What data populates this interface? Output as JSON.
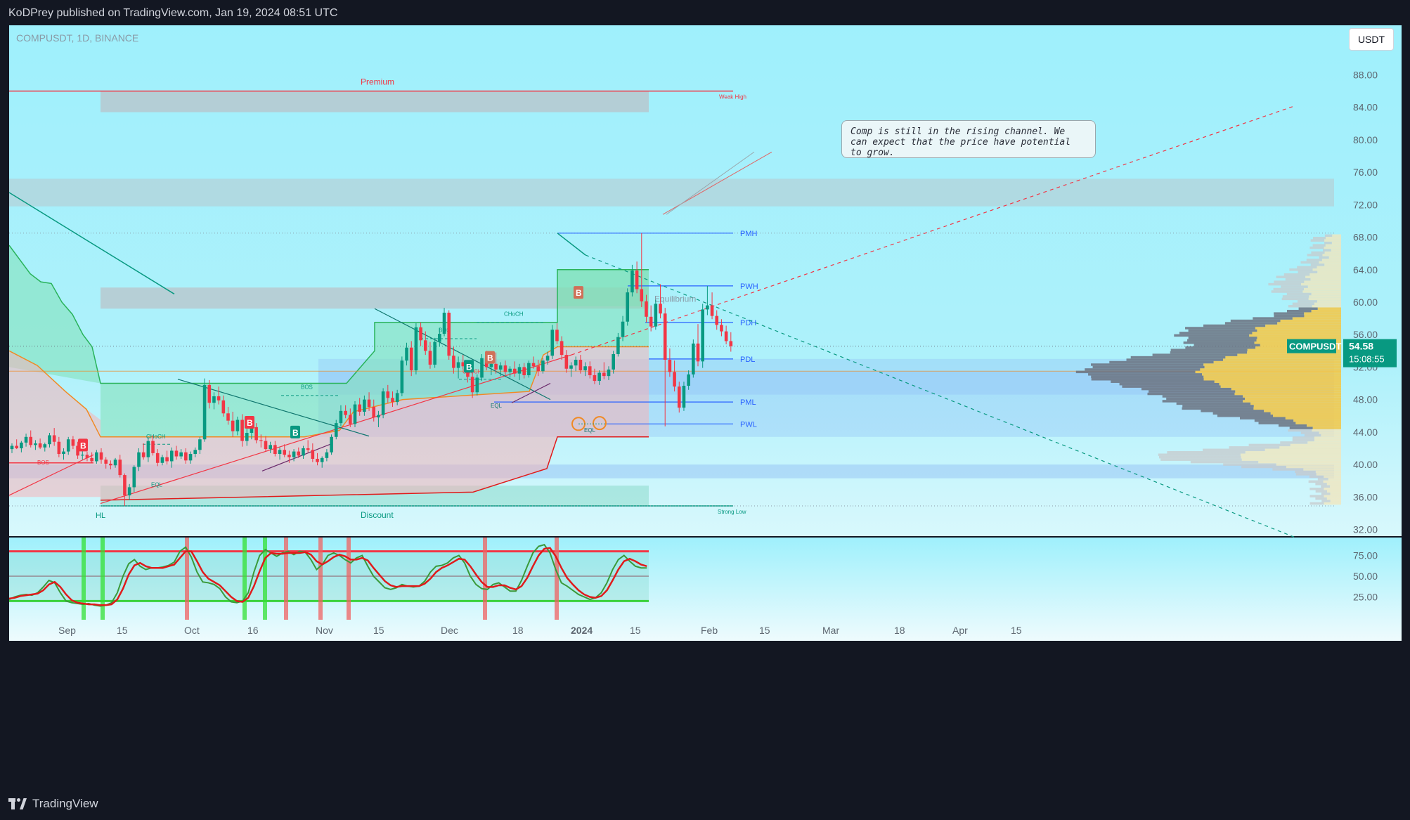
{
  "header": {
    "text": "KoDPrey published on TradingView.com, Jan 19, 2024 08:51 UTC"
  },
  "footer": {
    "brand": "TradingView"
  },
  "chart": {
    "symbol_label": "COMPUSDT, 1D, BINANCE",
    "currency": "USDT",
    "price_badge": {
      "symbol": "COMPUSDT",
      "price": "54.58",
      "countdown": "15:08:55"
    },
    "callout": "Comp is still in the rising channel. We can expect that the price have potential to grow."
  },
  "colors": {
    "bg_top": "#9ff0fc",
    "bg_bottom": "#f2fcfd",
    "bull": "#089981",
    "bear": "#f23645",
    "green_zone": "#7fe0b6",
    "red_zone": "#f6b3b8",
    "blue_zone": "#8fbdf5",
    "gray_zone": "#b9c3ca",
    "accent_blue": "#2962ff",
    "profile_yellow": "#f2c94c",
    "profile_gray": "#6b7280"
  },
  "chart_data": {
    "type": "candlestick",
    "price_axis": {
      "ticks": [
        "88.00",
        "84.00",
        "80.00",
        "76.00",
        "72.00",
        "68.00",
        "64.00",
        "60.00",
        "56.00",
        "52.00",
        "48.00",
        "44.00",
        "40.00",
        "36.00",
        "32.00"
      ],
      "range": [
        31,
        90
      ]
    },
    "time_axis": {
      "ticks": [
        "Sep",
        "15",
        "Oct",
        "16",
        "Nov",
        "15",
        "Dec",
        "18",
        "2024",
        "15",
        "Feb",
        "15",
        "Mar",
        "18",
        "Apr",
        "15"
      ]
    },
    "levels": [
      {
        "label": "PMH",
        "price": 68.5
      },
      {
        "label": "PWH",
        "price": 62.0
      },
      {
        "label": "PDH",
        "price": 57.5
      },
      {
        "label": "PDL",
        "price": 53.0
      },
      {
        "label": "PML",
        "price": 47.7
      },
      {
        "label": "PWL",
        "price": 45.0
      }
    ],
    "zone_labels": {
      "premium": "Premium",
      "discount": "Discount",
      "equilibrium": "Equilibrium",
      "weak_high": "Weak High",
      "strong_low": "Strong Low",
      "hl": "HL"
    },
    "structure_labels": [
      "BOS",
      "CHoCH",
      "BOS",
      "BOS",
      "CHoCH",
      "CHoCH",
      "EQL",
      "EQL",
      "EQL"
    ],
    "signals": [
      {
        "type": "B",
        "side": "sell",
        "x": 0.073
      },
      {
        "type": "B",
        "side": "sell",
        "x": 0.232
      },
      {
        "type": "B",
        "side": "buy",
        "x": 0.282
      },
      {
        "type": "B",
        "side": "buy",
        "x": 0.441
      },
      {
        "type": "B",
        "side": "sell",
        "x": 0.461
      },
      {
        "type": "B",
        "side": "sell",
        "x": 0.552
      }
    ],
    "candles": [
      [
        41.9,
        42.6,
        41.4,
        42.3
      ],
      [
        42.3,
        43.1,
        41.9,
        42.0
      ],
      [
        42.0,
        42.9,
        41.5,
        42.7
      ],
      [
        42.7,
        43.8,
        42.2,
        43.4
      ],
      [
        43.4,
        44.2,
        42.1,
        42.4
      ],
      [
        42.4,
        43.0,
        41.8,
        42.6
      ],
      [
        42.6,
        43.2,
        41.9,
        42.1
      ],
      [
        42.1,
        42.7,
        41.6,
        42.5
      ],
      [
        42.5,
        43.9,
        42.1,
        43.6
      ],
      [
        43.6,
        44.5,
        42.3,
        42.8
      ],
      [
        42.8,
        43.4,
        40.9,
        41.3
      ],
      [
        41.3,
        42.0,
        40.6,
        41.6
      ],
      [
        41.6,
        43.4,
        41.2,
        43.1
      ],
      [
        43.1,
        43.5,
        41.9,
        42.3
      ],
      [
        42.3,
        42.8,
        40.7,
        41.1
      ],
      [
        41.1,
        41.8,
        40.6,
        41.2
      ],
      [
        41.2,
        41.6,
        40.4,
        40.8
      ],
      [
        40.8,
        41.5,
        40.2,
        40.4
      ],
      [
        40.4,
        41.8,
        40.1,
        41.5
      ],
      [
        41.5,
        42.0,
        40.1,
        40.6
      ],
      [
        40.6,
        40.9,
        39.5,
        40.1
      ],
      [
        40.1,
        40.5,
        39.4,
        39.9
      ],
      [
        39.9,
        40.8,
        39.6,
        40.6
      ],
      [
        40.6,
        41.2,
        38.4,
        38.7
      ],
      [
        38.7,
        38.9,
        34.9,
        36.2
      ],
      [
        36.2,
        37.6,
        35.6,
        37.2
      ],
      [
        37.2,
        39.9,
        36.6,
        39.7
      ],
      [
        39.7,
        42.0,
        39.2,
        41.5
      ],
      [
        41.5,
        42.6,
        40.6,
        40.9
      ],
      [
        40.9,
        43.4,
        40.3,
        42.9
      ],
      [
        42.9,
        43.6,
        41.1,
        41.4
      ],
      [
        41.4,
        41.9,
        39.8,
        40.2
      ],
      [
        40.2,
        41.2,
        39.9,
        40.9
      ],
      [
        40.9,
        41.7,
        40.0,
        40.4
      ],
      [
        40.4,
        42.1,
        39.6,
        41.7
      ],
      [
        41.7,
        42.3,
        40.6,
        41.0
      ],
      [
        41.0,
        41.9,
        40.7,
        41.5
      ],
      [
        41.5,
        42.0,
        40.1,
        40.5
      ],
      [
        40.5,
        41.6,
        40.1,
        41.3
      ],
      [
        41.3,
        42.1,
        40.9,
        41.8
      ],
      [
        41.8,
        43.4,
        41.3,
        43.1
      ],
      [
        43.1,
        50.6,
        42.8,
        49.8
      ],
      [
        49.8,
        50.4,
        46.9,
        47.6
      ],
      [
        47.6,
        48.9,
        46.8,
        48.4
      ],
      [
        48.4,
        49.6,
        47.4,
        47.9
      ],
      [
        47.9,
        48.5,
        45.9,
        46.3
      ],
      [
        46.3,
        47.1,
        44.9,
        45.4
      ],
      [
        45.4,
        46.5,
        43.4,
        44.1
      ],
      [
        44.1,
        45.9,
        43.6,
        45.5
      ],
      [
        45.5,
        46.2,
        42.2,
        42.9
      ],
      [
        42.9,
        44.4,
        42.3,
        43.9
      ],
      [
        43.9,
        45.0,
        43.1,
        44.6
      ],
      [
        44.6,
        45.1,
        42.6,
        43.0
      ],
      [
        43.0,
        43.7,
        42.1,
        42.9
      ],
      [
        42.9,
        43.5,
        41.6,
        41.9
      ],
      [
        41.9,
        42.8,
        41.4,
        42.4
      ],
      [
        42.4,
        42.9,
        41.0,
        41.3
      ],
      [
        41.3,
        42.1,
        40.6,
        41.8
      ],
      [
        41.8,
        42.5,
        40.9,
        41.2
      ],
      [
        41.2,
        41.7,
        40.2,
        40.9
      ],
      [
        40.9,
        41.9,
        40.4,
        41.6
      ],
      [
        41.6,
        42.1,
        40.8,
        41.1
      ],
      [
        41.1,
        42.3,
        40.7,
        42.0
      ],
      [
        42.0,
        43.0,
        41.5,
        41.8
      ],
      [
        41.8,
        42.6,
        40.3,
        40.7
      ],
      [
        40.7,
        41.4,
        39.9,
        40.3
      ],
      [
        40.3,
        41.0,
        39.6,
        40.8
      ],
      [
        40.8,
        41.9,
        40.4,
        41.5
      ],
      [
        41.5,
        43.7,
        41.2,
        43.4
      ],
      [
        43.4,
        45.5,
        43.1,
        45.1
      ],
      [
        45.1,
        47.3,
        44.7,
        46.6
      ],
      [
        46.6,
        47.3,
        45.7,
        46.1
      ],
      [
        46.1,
        46.9,
        44.6,
        45.0
      ],
      [
        45.0,
        47.8,
        44.6,
        47.4
      ],
      [
        47.4,
        48.2,
        46.0,
        46.5
      ],
      [
        46.5,
        48.5,
        46.0,
        48.0
      ],
      [
        48.0,
        48.9,
        46.6,
        47.1
      ],
      [
        47.1,
        48.0,
        45.3,
        45.8
      ],
      [
        45.8,
        46.6,
        44.6,
        46.1
      ],
      [
        46.1,
        49.4,
        45.7,
        49.0
      ],
      [
        49.0,
        49.8,
        47.6,
        48.2
      ],
      [
        48.2,
        49.0,
        47.1,
        47.7
      ],
      [
        47.7,
        49.2,
        47.3,
        48.8
      ],
      [
        48.8,
        53.3,
        48.4,
        52.8
      ],
      [
        52.8,
        55.0,
        52.2,
        54.4
      ],
      [
        54.4,
        55.2,
        50.9,
        51.6
      ],
      [
        51.6,
        57.4,
        51.1,
        56.9
      ],
      [
        56.9,
        57.5,
        54.6,
        55.3
      ],
      [
        55.3,
        56.4,
        53.5,
        54.0
      ],
      [
        54.0,
        55.1,
        51.8,
        52.3
      ],
      [
        52.3,
        55.6,
        51.9,
        55.1
      ],
      [
        55.1,
        56.8,
        54.5,
        56.1
      ],
      [
        56.1,
        59.3,
        55.8,
        58.7
      ],
      [
        58.7,
        59.0,
        52.9,
        53.4
      ],
      [
        53.4,
        54.5,
        51.2,
        51.9
      ],
      [
        51.9,
        53.3,
        50.6,
        52.6
      ],
      [
        52.6,
        53.5,
        51.7,
        52.1
      ],
      [
        52.1,
        52.6,
        50.1,
        50.8
      ],
      [
        50.8,
        51.3,
        48.2,
        48.9
      ],
      [
        48.9,
        51.1,
        48.5,
        50.7
      ],
      [
        50.7,
        53.6,
        50.3,
        53.1
      ],
      [
        53.1,
        54.0,
        51.6,
        52.0
      ],
      [
        52.0,
        52.9,
        51.0,
        52.4
      ],
      [
        52.4,
        53.8,
        51.2,
        51.7
      ],
      [
        51.7,
        52.6,
        50.9,
        52.2
      ],
      [
        52.2,
        52.8,
        51.0,
        51.4
      ],
      [
        51.4,
        52.1,
        50.7,
        51.8
      ],
      [
        51.8,
        52.7,
        50.8,
        51.2
      ],
      [
        51.2,
        52.4,
        50.4,
        52.0
      ],
      [
        52.0,
        52.5,
        50.6,
        51.0
      ],
      [
        51.0,
        52.8,
        50.7,
        52.5
      ],
      [
        52.5,
        53.3,
        51.8,
        52.1
      ],
      [
        52.1,
        52.9,
        50.9,
        51.5
      ],
      [
        51.5,
        53.1,
        51.2,
        52.8
      ],
      [
        52.8,
        53.9,
        52.3,
        53.4
      ],
      [
        53.4,
        57.2,
        53.0,
        56.6
      ],
      [
        56.6,
        57.4,
        54.8,
        55.2
      ],
      [
        55.2,
        55.8,
        52.9,
        53.5
      ],
      [
        53.5,
        54.1,
        51.3,
        51.8
      ],
      [
        51.8,
        52.6,
        50.8,
        52.2
      ],
      [
        52.2,
        53.3,
        51.5,
        52.9
      ],
      [
        52.9,
        53.5,
        51.2,
        51.6
      ],
      [
        51.6,
        52.6,
        50.9,
        52.1
      ],
      [
        52.1,
        52.7,
        50.6,
        51.0
      ],
      [
        51.0,
        51.8,
        49.9,
        50.3
      ],
      [
        50.3,
        51.6,
        49.8,
        51.3
      ],
      [
        51.3,
        52.6,
        50.5,
        50.9
      ],
      [
        50.9,
        52.1,
        50.4,
        51.7
      ],
      [
        51.7,
        54.0,
        51.2,
        53.6
      ],
      [
        53.6,
        56.2,
        53.3,
        55.7
      ],
      [
        55.7,
        58.3,
        55.2,
        57.6
      ],
      [
        57.6,
        61.7,
        57.1,
        61.2
      ],
      [
        61.2,
        64.6,
        60.7,
        63.9
      ],
      [
        63.9,
        65.0,
        61.1,
        61.6
      ],
      [
        61.6,
        68.5,
        59.4,
        60.1
      ],
      [
        60.1,
        60.9,
        57.5,
        58.2
      ],
      [
        58.2,
        59.6,
        56.4,
        57.0
      ],
      [
        57.0,
        60.3,
        56.6,
        59.8
      ],
      [
        59.8,
        62.2,
        58.0,
        58.6
      ],
      [
        58.6,
        59.3,
        44.7,
        52.9
      ],
      [
        52.9,
        54.3,
        50.8,
        51.4
      ],
      [
        51.4,
        52.8,
        49.0,
        49.6
      ],
      [
        49.6,
        50.2,
        46.4,
        47.0
      ],
      [
        47.0,
        50.2,
        46.6,
        49.7
      ],
      [
        49.7,
        51.6,
        49.2,
        51.1
      ],
      [
        51.1,
        55.4,
        50.7,
        54.9
      ],
      [
        54.9,
        57.3,
        52.1,
        52.7
      ],
      [
        52.7,
        59.8,
        51.9,
        59.1
      ],
      [
        59.1,
        62.0,
        58.4,
        59.6
      ],
      [
        59.6,
        61.2,
        57.9,
        58.3
      ],
      [
        58.3,
        59.0,
        56.6,
        57.2
      ],
      [
        57.2,
        57.9,
        55.8,
        56.4
      ],
      [
        56.4,
        57.1,
        54.8,
        55.2
      ],
      [
        55.2,
        56.3,
        53.9,
        54.58
      ]
    ],
    "oscillator": {
      "levels": [
        80,
        50,
        20
      ],
      "axis_ticks": [
        "75.00",
        "50.00",
        "25.00"
      ],
      "k": [
        22,
        25,
        27,
        28,
        27,
        30,
        37,
        45,
        42,
        30,
        20,
        18,
        17,
        16,
        17,
        15,
        14,
        15,
        18,
        30,
        50,
        65,
        70,
        62,
        58,
        60,
        60,
        61,
        63,
        67,
        80,
        85,
        73,
        55,
        43,
        42,
        40,
        35,
        25,
        19,
        18,
        20,
        30,
        55,
        75,
        82,
        78,
        74,
        78,
        80,
        76,
        80,
        79,
        70,
        58,
        64,
        75,
        78,
        75,
        70,
        66,
        72,
        75,
        62,
        50,
        43,
        36,
        34,
        36,
        40,
        38,
        37,
        38,
        44,
        55,
        62,
        63,
        66,
        72,
        75,
        66,
        50,
        40,
        35,
        34,
        40,
        42,
        37,
        32,
        32,
        45,
        62,
        78,
        86,
        88,
        78,
        58,
        42,
        38,
        33,
        28,
        25,
        22,
        24,
        30,
        42,
        58,
        70,
        75,
        68,
        62,
        60,
        60
      ],
      "d": [
        23,
        24,
        26,
        27,
        28,
        29,
        33,
        40,
        43,
        37,
        28,
        21,
        18,
        17,
        16,
        16,
        15,
        15,
        16,
        22,
        35,
        52,
        63,
        66,
        62,
        60,
        60,
        60,
        62,
        64,
        72,
        80,
        80,
        68,
        55,
        47,
        43,
        39,
        32,
        25,
        20,
        19,
        24,
        38,
        56,
        72,
        78,
        77,
        77,
        78,
        78,
        78,
        79,
        76,
        68,
        64,
        68,
        73,
        76,
        74,
        70,
        70,
        72,
        69,
        60,
        52,
        44,
        39,
        37,
        38,
        38,
        38,
        38,
        41,
        47,
        55,
        60,
        63,
        67,
        71,
        70,
        62,
        52,
        43,
        37,
        37,
        39,
        39,
        36,
        34,
        38,
        48,
        62,
        75,
        83,
        84,
        74,
        60,
        48,
        40,
        33,
        28,
        25,
        24,
        26,
        33,
        45,
        58,
        68,
        71,
        68,
        64,
        62
      ]
    }
  }
}
